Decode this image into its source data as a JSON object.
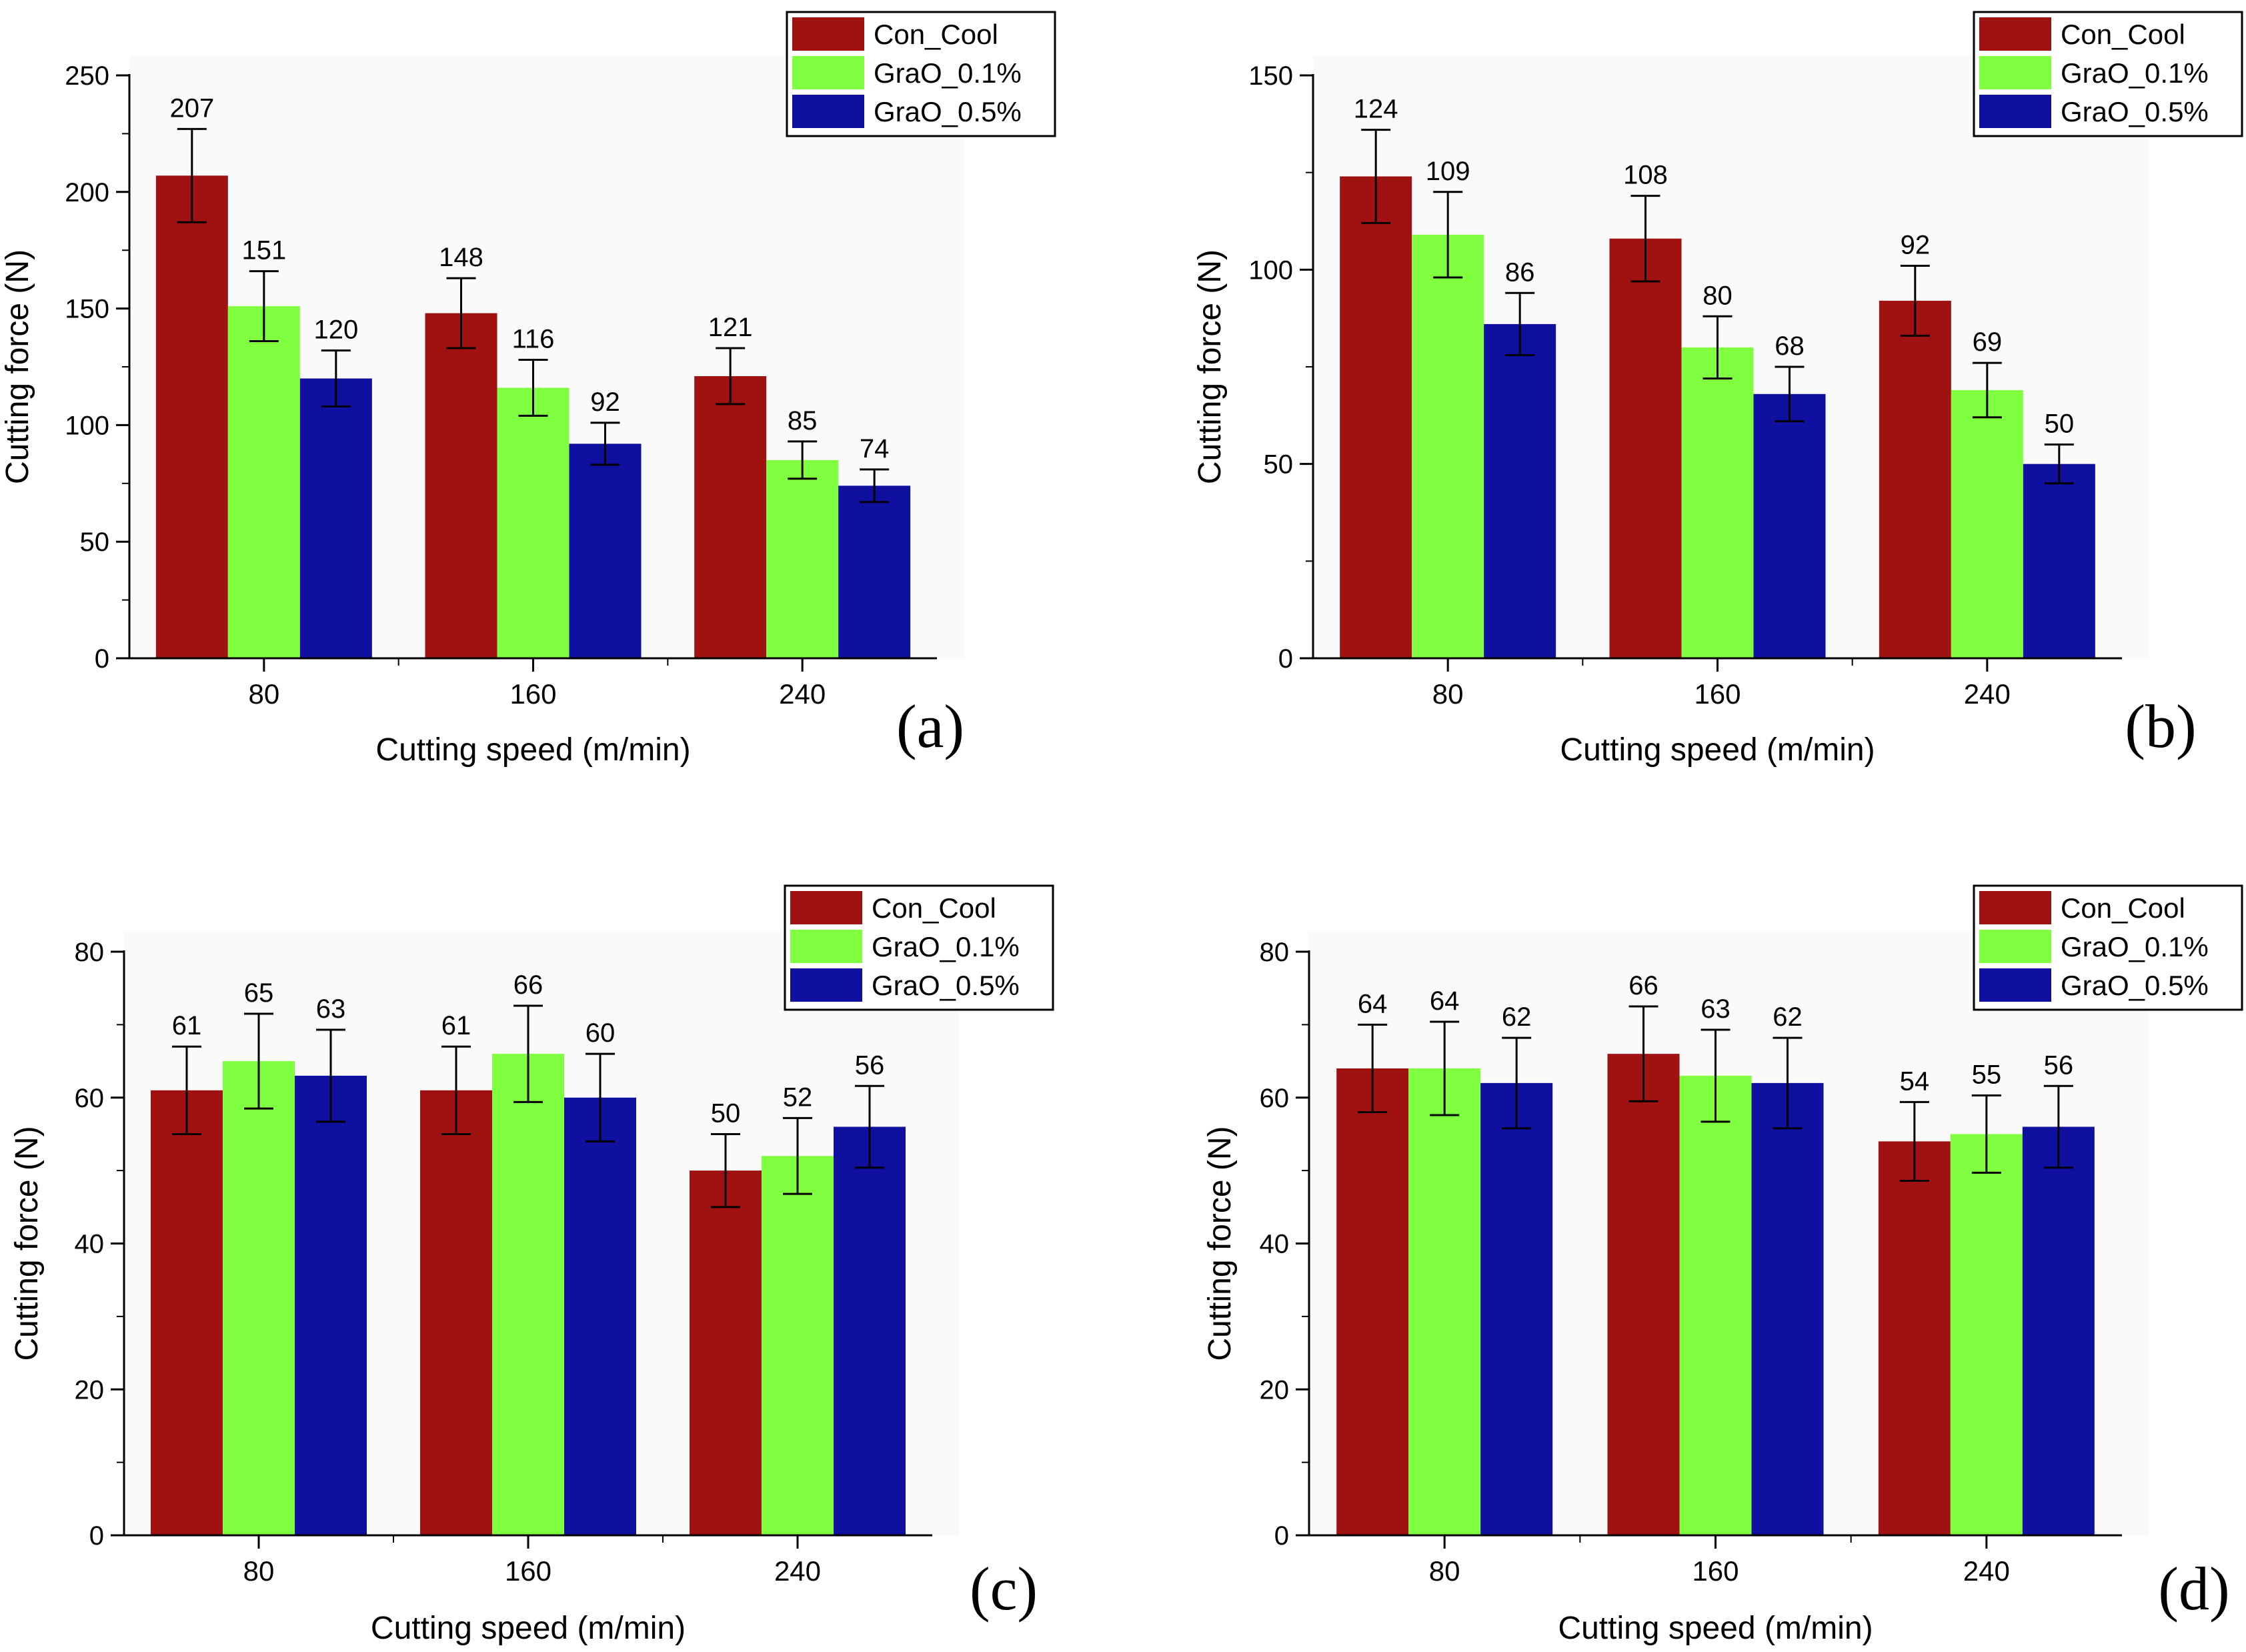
{
  "colors": {
    "Con_Cool": "#a01212",
    "GraO_0.1%": "#80ff40",
    "GraO_0.5%": "#0f0fa0",
    "axis": "#000000"
  },
  "chart_data": [
    {
      "type": "bar",
      "panel_label": "(a)",
      "xlabel": "Cutting speed (m/min)",
      "ylabel": "Cutting force (N)",
      "categories": [
        "80",
        "160",
        "240"
      ],
      "ylim": [
        0,
        250
      ],
      "yticks": [
        "0",
        "50",
        "100",
        "150",
        "200",
        "250"
      ],
      "legend": [
        "Con_Cool",
        "GraO_0.1%",
        "GraO_0.5%"
      ],
      "series": [
        {
          "name": "Con_Cool",
          "values": [
            207,
            148,
            121
          ],
          "labels": [
            "207",
            "148",
            "121"
          ],
          "errors": [
            20,
            15,
            12
          ]
        },
        {
          "name": "GraO_0.1%",
          "values": [
            151,
            116,
            85
          ],
          "labels": [
            "151",
            "116",
            "85"
          ],
          "errors": [
            15,
            12,
            8
          ]
        },
        {
          "name": "GraO_0.5%",
          "values": [
            120,
            92,
            74
          ],
          "labels": [
            "120",
            "92",
            "74"
          ],
          "errors": [
            12,
            9,
            7
          ]
        }
      ]
    },
    {
      "type": "bar",
      "panel_label": "(b)",
      "xlabel": "Cutting speed (m/min)",
      "ylabel": "Cutting force (N)",
      "categories": [
        "80",
        "160",
        "240"
      ],
      "ylim": [
        0,
        150
      ],
      "yticks": [
        "0",
        "50",
        "100",
        "150"
      ],
      "legend": [
        "Con_Cool",
        "GraO_0.1%",
        "GraO_0.5%"
      ],
      "series": [
        {
          "name": "Con_Cool",
          "values": [
            124,
            108,
            92
          ],
          "labels": [
            "124",
            "108",
            "92"
          ],
          "errors": [
            12,
            11,
            9
          ]
        },
        {
          "name": "GraO_0.1%",
          "values": [
            109,
            80,
            69
          ],
          "labels": [
            "109",
            "80",
            "69"
          ],
          "errors": [
            11,
            8,
            7
          ]
        },
        {
          "name": "GraO_0.5%",
          "values": [
            86,
            68,
            50
          ],
          "labels": [
            "86",
            "68",
            "50"
          ],
          "errors": [
            8,
            7,
            5
          ]
        }
      ]
    },
    {
      "type": "bar",
      "panel_label": "(c)",
      "xlabel": "Cutting speed (m/min)",
      "ylabel": "Cutting force (N)",
      "categories": [
        "80",
        "160",
        "240"
      ],
      "ylim": [
        0,
        80
      ],
      "yticks": [
        "0",
        "20",
        "40",
        "60",
        "80"
      ],
      "legend": [
        "Con_Cool",
        "GraO_0.1%",
        "GraO_0.5%"
      ],
      "series": [
        {
          "name": "Con_Cool",
          "values": [
            61,
            61,
            50
          ],
          "labels": [
            "61",
            "61",
            "50"
          ],
          "errors": [
            6,
            6,
            5
          ]
        },
        {
          "name": "GraO_0.1%",
          "values": [
            65,
            66,
            52
          ],
          "labels": [
            "65",
            "66",
            "52"
          ],
          "errors": [
            6.5,
            6.6,
            5.2
          ]
        },
        {
          "name": "GraO_0.5%",
          "values": [
            63,
            60,
            56
          ],
          "labels": [
            "63",
            "60",
            "56"
          ],
          "errors": [
            6.3,
            6,
            5.6
          ]
        }
      ]
    },
    {
      "type": "bar",
      "panel_label": "(d)",
      "xlabel": "Cutting speed (m/min)",
      "ylabel": "Cutting force (N)",
      "categories": [
        "80",
        "160",
        "240"
      ],
      "ylim": [
        0,
        80
      ],
      "yticks": [
        "0",
        "20",
        "40",
        "60",
        "80"
      ],
      "legend": [
        "Con_Cool",
        "GraO_0.1%",
        "GraO_0.5%"
      ],
      "series": [
        {
          "name": "Con_Cool",
          "values": [
            64,
            66,
            54
          ],
          "labels": [
            "64",
            "66",
            "54"
          ],
          "errors": [
            6,
            6.5,
            5.4
          ]
        },
        {
          "name": "GraO_0.1%",
          "values": [
            64,
            63,
            55
          ],
          "labels": [
            "64",
            "63",
            "55"
          ],
          "errors": [
            6.4,
            6.3,
            5.3
          ]
        },
        {
          "name": "GraO_0.5%",
          "values": [
            62,
            62,
            56
          ],
          "labels": [
            "62",
            "62",
            "56"
          ],
          "errors": [
            6.2,
            6.2,
            5.6
          ]
        }
      ]
    }
  ]
}
